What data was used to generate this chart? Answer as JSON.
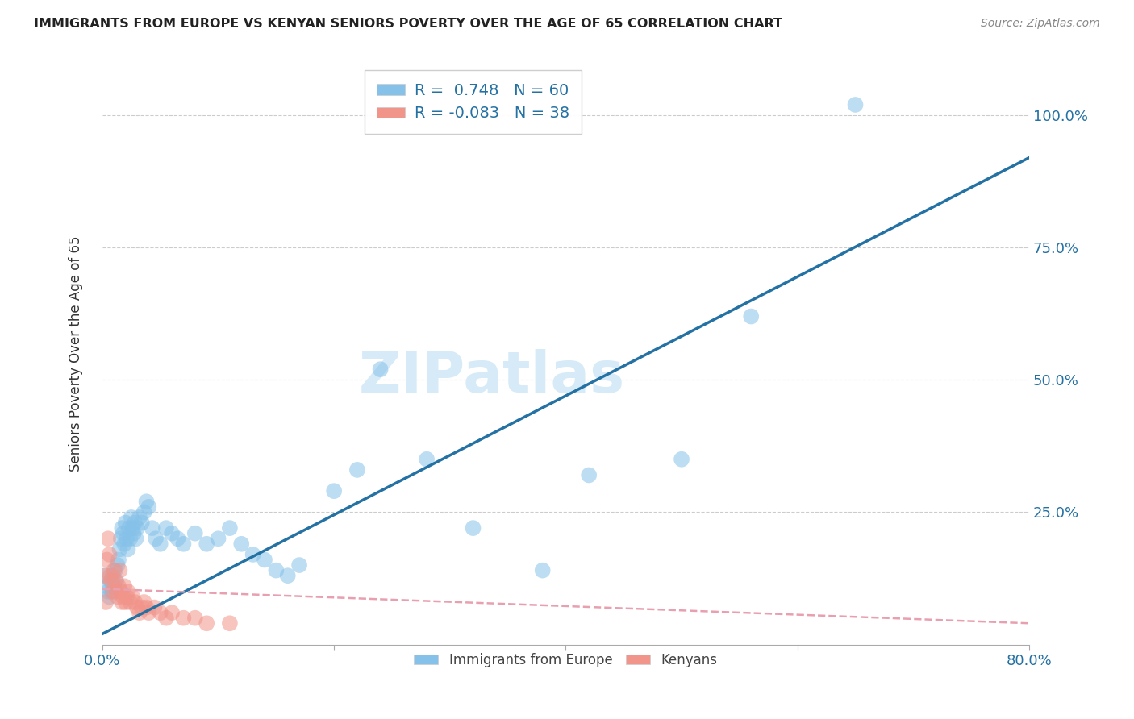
{
  "title": "IMMIGRANTS FROM EUROPE VS KENYAN SENIORS POVERTY OVER THE AGE OF 65 CORRELATION CHART",
  "source": "Source: ZipAtlas.com",
  "ylabel": "Seniors Poverty Over the Age of 65",
  "xlim": [
    0,
    0.8
  ],
  "ylim": [
    0,
    1.1
  ],
  "yticks": [
    0.25,
    0.5,
    0.75,
    1.0
  ],
  "ytick_labels": [
    "25.0%",
    "50.0%",
    "75.0%",
    "100.0%"
  ],
  "blue_R": 0.748,
  "blue_N": 60,
  "pink_R": -0.083,
  "pink_N": 38,
  "watermark": "ZIPatlas",
  "blue_color": "#85C1E9",
  "pink_color": "#F1948A",
  "blue_line_color": "#2471A3",
  "pink_line_color": "#E8A0B0",
  "legend_blue_label": "Immigrants from Europe",
  "legend_pink_label": "Kenyans",
  "blue_line_x0": 0.0,
  "blue_line_y0": 0.02,
  "blue_line_x1": 0.8,
  "blue_line_y1": 0.92,
  "pink_line_x0": 0.0,
  "pink_line_y0": 0.105,
  "pink_line_x1": 0.8,
  "pink_line_y1": 0.04,
  "blue_scatter": [
    [
      0.003,
      0.13
    ],
    [
      0.004,
      0.11
    ],
    [
      0.005,
      0.1
    ],
    [
      0.006,
      0.09
    ],
    [
      0.007,
      0.12
    ],
    [
      0.008,
      0.1
    ],
    [
      0.009,
      0.13
    ],
    [
      0.01,
      0.11
    ],
    [
      0.011,
      0.14
    ],
    [
      0.012,
      0.12
    ],
    [
      0.013,
      0.15
    ],
    [
      0.014,
      0.16
    ],
    [
      0.015,
      0.18
    ],
    [
      0.016,
      0.2
    ],
    [
      0.017,
      0.22
    ],
    [
      0.018,
      0.21
    ],
    [
      0.019,
      0.19
    ],
    [
      0.02,
      0.23
    ],
    [
      0.021,
      0.2
    ],
    [
      0.022,
      0.18
    ],
    [
      0.023,
      0.22
    ],
    [
      0.024,
      0.2
    ],
    [
      0.025,
      0.24
    ],
    [
      0.026,
      0.22
    ],
    [
      0.027,
      0.21
    ],
    [
      0.028,
      0.23
    ],
    [
      0.029,
      0.2
    ],
    [
      0.03,
      0.22
    ],
    [
      0.032,
      0.24
    ],
    [
      0.034,
      0.23
    ],
    [
      0.036,
      0.25
    ],
    [
      0.038,
      0.27
    ],
    [
      0.04,
      0.26
    ],
    [
      0.043,
      0.22
    ],
    [
      0.046,
      0.2
    ],
    [
      0.05,
      0.19
    ],
    [
      0.055,
      0.22
    ],
    [
      0.06,
      0.21
    ],
    [
      0.065,
      0.2
    ],
    [
      0.07,
      0.19
    ],
    [
      0.08,
      0.21
    ],
    [
      0.09,
      0.19
    ],
    [
      0.1,
      0.2
    ],
    [
      0.11,
      0.22
    ],
    [
      0.12,
      0.19
    ],
    [
      0.13,
      0.17
    ],
    [
      0.14,
      0.16
    ],
    [
      0.15,
      0.14
    ],
    [
      0.16,
      0.13
    ],
    [
      0.17,
      0.15
    ],
    [
      0.2,
      0.29
    ],
    [
      0.22,
      0.33
    ],
    [
      0.24,
      0.52
    ],
    [
      0.28,
      0.35
    ],
    [
      0.32,
      0.22
    ],
    [
      0.38,
      0.14
    ],
    [
      0.42,
      0.32
    ],
    [
      0.5,
      0.35
    ],
    [
      0.56,
      0.62
    ],
    [
      0.65,
      1.02
    ]
  ],
  "pink_scatter": [
    [
      0.002,
      0.13
    ],
    [
      0.003,
      0.08
    ],
    [
      0.004,
      0.16
    ],
    [
      0.005,
      0.2
    ],
    [
      0.006,
      0.17
    ],
    [
      0.007,
      0.13
    ],
    [
      0.008,
      0.12
    ],
    [
      0.009,
      0.1
    ],
    [
      0.01,
      0.14
    ],
    [
      0.011,
      0.12
    ],
    [
      0.012,
      0.1
    ],
    [
      0.013,
      0.09
    ],
    [
      0.014,
      0.11
    ],
    [
      0.015,
      0.14
    ],
    [
      0.016,
      0.1
    ],
    [
      0.017,
      0.08
    ],
    [
      0.018,
      0.09
    ],
    [
      0.019,
      0.11
    ],
    [
      0.02,
      0.08
    ],
    [
      0.021,
      0.09
    ],
    [
      0.022,
      0.1
    ],
    [
      0.024,
      0.08
    ],
    [
      0.026,
      0.09
    ],
    [
      0.028,
      0.08
    ],
    [
      0.03,
      0.07
    ],
    [
      0.032,
      0.06
    ],
    [
      0.034,
      0.07
    ],
    [
      0.036,
      0.08
    ],
    [
      0.038,
      0.07
    ],
    [
      0.04,
      0.06
    ],
    [
      0.045,
      0.07
    ],
    [
      0.05,
      0.06
    ],
    [
      0.055,
      0.05
    ],
    [
      0.06,
      0.06
    ],
    [
      0.07,
      0.05
    ],
    [
      0.08,
      0.05
    ],
    [
      0.09,
      0.04
    ],
    [
      0.11,
      0.04
    ]
  ]
}
